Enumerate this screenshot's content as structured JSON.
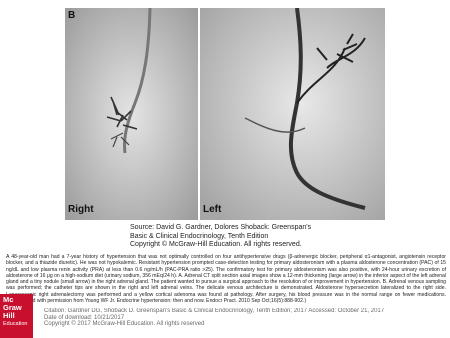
{
  "figure": {
    "panel_label": "B",
    "left_image_label": "Right",
    "right_image_label": "Left"
  },
  "source": [
    "Source: David G. Gardner, Dolores Shoback: Greenspan's",
    "Basic & Clinical Endocrinology, Tenth Edition",
    "Copyright © McGraw-Hill Education. All rights reserved."
  ],
  "caption": "A 48-year-old man had a 7-year history of hypertension that was not optimally controlled on four antihypertensive drugs (β-adrenergic blocker, peripheral α1-antagonist, angiotensin receptor blocker, and a thiazide diuretic). He was not hypokalemic. Resistant hypertension prompted case-detection testing for primary aldosteronism with a plasma aldosterone concentration (PAC) of 15 ng/dL and low plasma renin activity (PRA) at less than 0.6 ng/mL/h (PAC-PRA ratio >25). The confirmatory test for primary aldosteronism was also positive, with 24-hour urinary excretion of aldosterone of 16 μg on a high-sodium diet (urinary sodium, 356 mEq/24 h). A. Adrenal CT split section axial images show a 12-mm thickening (large arrow) in the inferior aspect of the left adrenal gland and a tiny nodule (small arrow) in the right adrenal gland. The patient wanted to pursue a surgical approach to the resolution of or improvement in hypertension. B. Adrenal venous sampling was performed; the catheter tips are shown in the right and left adrenal veins. The delicate venous architecture is demonstrated. Aldosterone hypersecretion lateralized to the right side. Laparoscopic right adrenalectomy was performed and a yellow cortical adenoma was found at pathology. After surgery, his blood pressure was in the normal range on fewer medications. (Reproduced with permission from Young WF Jr. Endocrine hypertension: then and now. Endocr Pract. 2010 Sep Oct;16(5):888-902.)",
  "footer": {
    "citation": "Citation: Gardner DG, Shoback D. Greenspan's Basic & Clinical Endocrinology, Tenth Edition; 2017 Accessed: October 21, 2017",
    "download_date": "Date of download: 10/21/2017",
    "copyright": "Copyright © 2017 McGraw-Hill Education. All rights reserved"
  },
  "logo": [
    "Mc",
    "Graw",
    "Hill",
    "Education"
  ]
}
